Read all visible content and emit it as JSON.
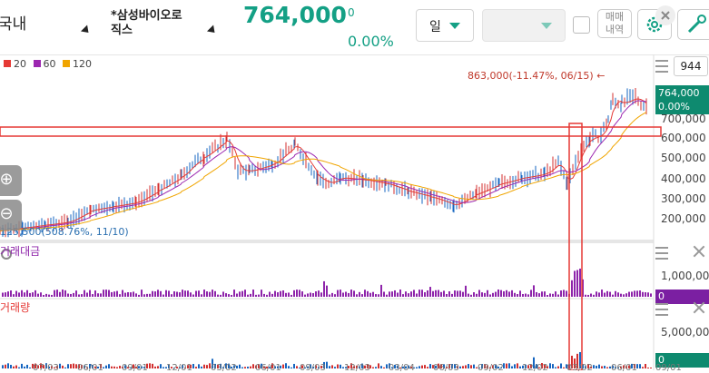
{
  "header": {
    "market": "국내",
    "stock_name_line1": "*삼성바이오로",
    "stock_name_line2": "직스",
    "price": "764,000",
    "change": "0",
    "change_pct": "0.00%",
    "period_select": "일",
    "trade_history_line1": "매매",
    "trade_history_line2": "내역",
    "accent_color": "#14a085"
  },
  "legend": [
    {
      "label": "20",
      "color": "#e53935"
    },
    {
      "label": "60",
      "color": "#9c27b0"
    },
    {
      "label": "120",
      "color": "#f0a500"
    }
  ],
  "price_panel": {
    "period_count": "944",
    "current_price_tag": "764,000",
    "current_pct_tag": "0.00%",
    "y_ticks": [
      "700,000",
      "600,000",
      "500,000",
      "400,000",
      "300,000",
      "200,000"
    ],
    "high_annotation": "863,000(-11.47%, 06/15)",
    "high_arrow": "←",
    "low_annotation": "125,500(508.76%, 11/10)"
  },
  "value_panel": {
    "label": "거래대금",
    "y_tick": "1,000,000",
    "tag": "0"
  },
  "volume_panel": {
    "label": "거래량",
    "y_tick": "5,000,000",
    "tag": "0"
  },
  "x_ticks": [
    "07/03",
    "06/01",
    "09/01",
    "12/01",
    "03/02",
    "06/01",
    "09/03",
    "12/03",
    "03/04",
    "06/03",
    "09/02",
    "12/02",
    "03/02",
    "06/01",
    "09/01"
  ],
  "chart_data": {
    "type": "line",
    "title": "",
    "xlabel": "",
    "ylabel": "",
    "ylim": [
      150000,
      900000
    ],
    "x": [
      0,
      25,
      50,
      75,
      100,
      125,
      150,
      175,
      200,
      212,
      225,
      250,
      262,
      275,
      300,
      325,
      350,
      362,
      375,
      400,
      425,
      450,
      475,
      500,
      525,
      550,
      575,
      600,
      615,
      625,
      640,
      650,
      662,
      670,
      675,
      685,
      700,
      712
    ],
    "series": [
      {
        "name": "",
        "values": [
          130000,
          145000,
          160000,
          175000,
          235000,
          255000,
          275000,
          340000,
          410000,
          470000,
          510000,
          600000,
          440000,
          435000,
          470000,
          570000,
          400000,
          370000,
          400000,
          390000,
          370000,
          330000,
          300000,
          260000,
          320000,
          370000,
          400000,
          420000,
          480000,
          370000,
          550000,
          600000,
          620000,
          700000,
          800000,
          780000,
          810000,
          764000
        ]
      }
    ],
    "moving_averages": [
      "20",
      "60",
      "120"
    ]
  }
}
